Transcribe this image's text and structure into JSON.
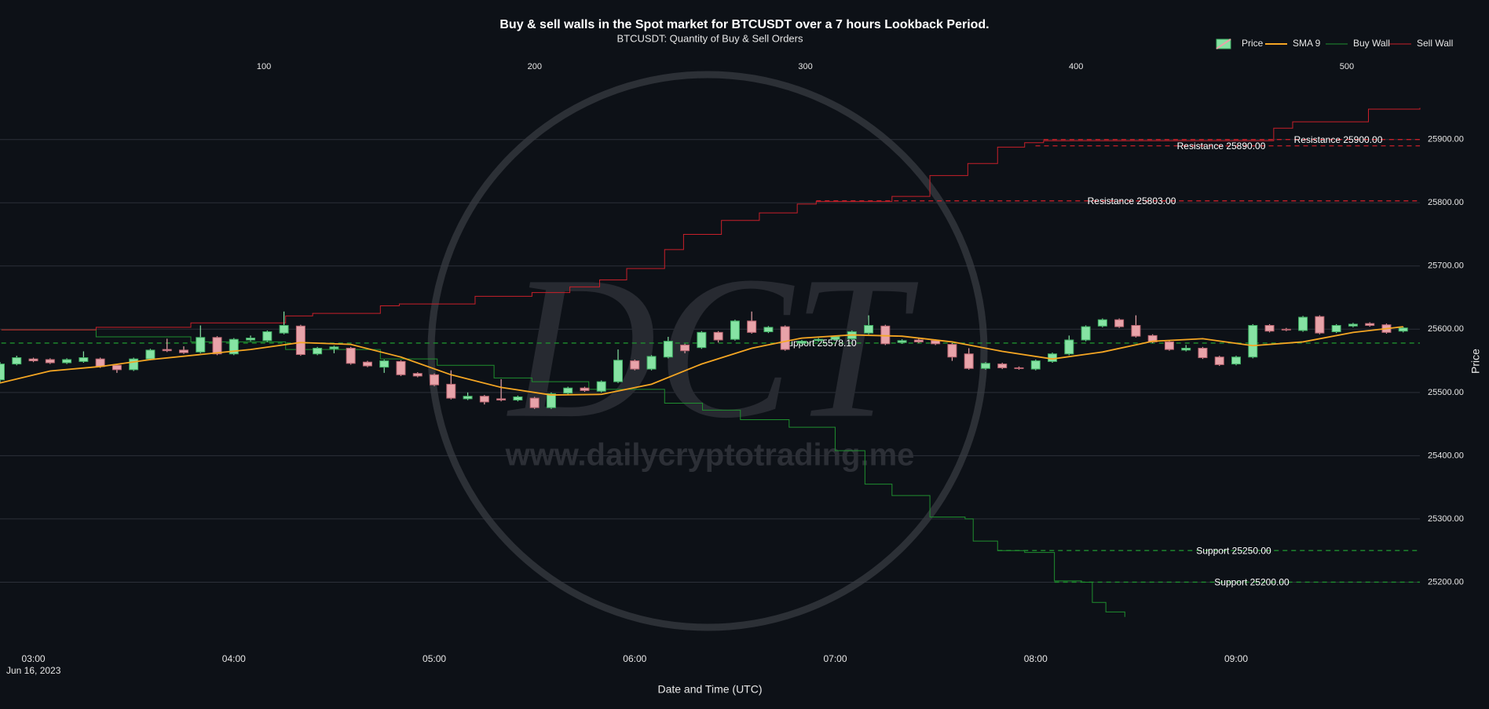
{
  "chart_data": {
    "type": "candlestick",
    "title": "Buy & sell walls in the Spot market for BTCUSDT over a 7 hours Lookback Period.",
    "subtitle": "BTCUSDT: Quantity of Buy & Sell Orders",
    "x_label": "Date and Time (UTC)",
    "x_date_label": "Jun 16, 2023",
    "y_label": "Price",
    "watermark": {
      "logo": "DCT",
      "url": "www.dailycryptotrading.me"
    },
    "xlim": [
      "2023-06-16 02:50",
      "2023-06-16 09:55"
    ],
    "xticks": [
      {
        "value": "2023-06-16 03:00",
        "label": "03:00"
      },
      {
        "value": "2023-06-16 04:00",
        "label": "04:00"
      },
      {
        "value": "2023-06-16 05:00",
        "label": "05:00"
      },
      {
        "value": "2023-06-16 06:00",
        "label": "06:00"
      },
      {
        "value": "2023-06-16 07:00",
        "label": "07:00"
      },
      {
        "value": "2023-06-16 08:00",
        "label": "08:00"
      },
      {
        "value": "2023-06-16 09:00",
        "label": "09:00"
      }
    ],
    "x2lim": [
      2.5,
      527
    ],
    "x2ticks": [
      100,
      200,
      300,
      400,
      500
    ],
    "ylim": [
      25100,
      26030
    ],
    "yticks": [
      {
        "value": 25200,
        "label": "25200.00"
      },
      {
        "value": 25300,
        "label": "25300.00"
      },
      {
        "value": 25400,
        "label": "25400.00"
      },
      {
        "value": 25500,
        "label": "25500.00"
      },
      {
        "value": 25600,
        "label": "25600.00"
      },
      {
        "value": 25700,
        "label": "25700.00"
      },
      {
        "value": 25800,
        "label": "25800.00"
      },
      {
        "value": 25900,
        "label": "25900.00"
      }
    ],
    "grid": true,
    "legend": "top-right",
    "series": [
      {
        "name": "Price",
        "type": "candlestick",
        "increasing_color": "#86e3a3",
        "decreasing_color": "#e8a3a9",
        "x": [
          "2023-06-16 02:50",
          "2023-06-16 02:55",
          "2023-06-16 03:00",
          "2023-06-16 03:05",
          "2023-06-16 03:10",
          "2023-06-16 03:15",
          "2023-06-16 03:20",
          "2023-06-16 03:25",
          "2023-06-16 03:30",
          "2023-06-16 03:35",
          "2023-06-16 03:40",
          "2023-06-16 03:45",
          "2023-06-16 03:50",
          "2023-06-16 03:55",
          "2023-06-16 04:00",
          "2023-06-16 04:05",
          "2023-06-16 04:10",
          "2023-06-16 04:15",
          "2023-06-16 04:20",
          "2023-06-16 04:25",
          "2023-06-16 04:30",
          "2023-06-16 04:35",
          "2023-06-16 04:40",
          "2023-06-16 04:45",
          "2023-06-16 04:50",
          "2023-06-16 04:55",
          "2023-06-16 05:00",
          "2023-06-16 05:05",
          "2023-06-16 05:10",
          "2023-06-16 05:15",
          "2023-06-16 05:20",
          "2023-06-16 05:25",
          "2023-06-16 05:30",
          "2023-06-16 05:35",
          "2023-06-16 05:40",
          "2023-06-16 05:45",
          "2023-06-16 05:50",
          "2023-06-16 05:55",
          "2023-06-16 06:00",
          "2023-06-16 06:05",
          "2023-06-16 06:10",
          "2023-06-16 06:15",
          "2023-06-16 06:20",
          "2023-06-16 06:25",
          "2023-06-16 06:30",
          "2023-06-16 06:35",
          "2023-06-16 06:40",
          "2023-06-16 06:45",
          "2023-06-16 06:50",
          "2023-06-16 06:55",
          "2023-06-16 07:00",
          "2023-06-16 07:05",
          "2023-06-16 07:10",
          "2023-06-16 07:15",
          "2023-06-16 07:20",
          "2023-06-16 07:25",
          "2023-06-16 07:30",
          "2023-06-16 07:35",
          "2023-06-16 07:40",
          "2023-06-16 07:45",
          "2023-06-16 07:50",
          "2023-06-16 07:55",
          "2023-06-16 08:00",
          "2023-06-16 08:05",
          "2023-06-16 08:10",
          "2023-06-16 08:15",
          "2023-06-16 08:20",
          "2023-06-16 08:25",
          "2023-06-16 08:30",
          "2023-06-16 08:35",
          "2023-06-16 08:40",
          "2023-06-16 08:45",
          "2023-06-16 08:50",
          "2023-06-16 08:55",
          "2023-06-16 09:00",
          "2023-06-16 09:05",
          "2023-06-16 09:10",
          "2023-06-16 09:15",
          "2023-06-16 09:20",
          "2023-06-16 09:25",
          "2023-06-16 09:30",
          "2023-06-16 09:35",
          "2023-06-16 09:40",
          "2023-06-16 09:45",
          "2023-06-16 09:50"
        ],
        "open": [
          25520,
          25545,
          25553,
          25552,
          25547,
          25549,
          25553,
          25543,
          25536,
          25553,
          25568,
          25567,
          25564,
          25587,
          25561,
          25583,
          25582,
          25594,
          25605,
          25561,
          25569,
          25570,
          25548,
          25540,
          25549,
          25530,
          25528,
          25513,
          25490,
          25494,
          25490,
          25488,
          25491,
          25476,
          25499,
          25507,
          25502,
          25517,
          25550,
          25537,
          25556,
          25575,
          25571,
          25595,
          25584,
          25613,
          25596,
          25604,
          25578,
          25582,
          25584,
          25585,
          25594,
          25605,
          25579,
          25583,
          25582,
          25576,
          25561,
          25538,
          25545,
          25539,
          25537,
          25549,
          25561,
          25583,
          25605,
          25615,
          25606,
          25590,
          25580,
          25567,
          25570,
          25556,
          25545,
          25556,
          25606,
          25600,
          25598,
          25620,
          25596,
          25605,
          25609,
          25607,
          25597
        ],
        "high": [
          25548,
          25558,
          25555,
          25554,
          25554,
          25565,
          25555,
          25545,
          25555,
          25569,
          25585,
          25573,
          25606,
          25589,
          25586,
          25590,
          25598,
          25628,
          25607,
          25572,
          25574,
          25572,
          25550,
          25552,
          25551,
          25532,
          25530,
          25535,
          25500,
          25496,
          25521,
          25495,
          25493,
          25500,
          25509,
          25509,
          25519,
          25568,
          25552,
          25559,
          25588,
          25577,
          25597,
          25597,
          25615,
          25628,
          25605,
          25606,
          25583,
          25586,
          25590,
          25598,
          25622,
          25607,
          25584,
          25585,
          25584,
          25578,
          25570,
          25548,
          25547,
          25541,
          25552,
          25563,
          25590,
          25606,
          25617,
          25617,
          25622,
          25592,
          25582,
          25575,
          25572,
          25558,
          25558,
          25608,
          25608,
          25602,
          25621,
          25622,
          25608,
          25610,
          25611,
          25609,
          25604
        ],
        "low": [
          25515,
          25543,
          25548,
          25545,
          25545,
          25547,
          25539,
          25531,
          25534,
          25551,
          25564,
          25561,
          25562,
          25559,
          25559,
          25581,
          25580,
          25592,
          25558,
          25559,
          25562,
          25544,
          25540,
          25531,
          25526,
          25524,
          25510,
          25489,
          25488,
          25481,
          25486,
          25486,
          25474,
          25474,
          25497,
          25501,
          25500,
          25515,
          25535,
          25535,
          25554,
          25562,
          25569,
          25579,
          25582,
          25593,
          25594,
          25566,
          25576,
          25580,
          25582,
          25583,
          25592,
          25575,
          25577,
          25578,
          25575,
          25550,
          25536,
          25536,
          25537,
          25536,
          25535,
          25547,
          25559,
          25581,
          25603,
          25602,
          25587,
          25578,
          25566,
          25565,
          25553,
          25542,
          25543,
          25554,
          25595,
          25597,
          25596,
          25592,
          25594,
          25603,
          25604,
          25593,
          25595
        ],
        "close": [
          25545,
          25555,
          25550,
          25547,
          25552,
          25555,
          25541,
          25536,
          25553,
          25567,
          25566,
          25563,
          25587,
          25561,
          25584,
          25586,
          25596,
          25606,
          25560,
          25570,
          25572,
          25546,
          25542,
          25550,
          25528,
          25526,
          25512,
          25491,
          25494,
          25485,
          25488,
          25493,
          25476,
          25498,
          25507,
          25503,
          25517,
          25551,
          25537,
          25557,
          25581,
          25566,
          25595,
          25583,
          25613,
          25595,
          25603,
          25568,
          25581,
          25584,
          25588,
          25596,
          25606,
          25577,
          25582,
          25580,
          25577,
          25556,
          25538,
          25546,
          25539,
          25538,
          25550,
          25561,
          25583,
          25604,
          25615,
          25604,
          25589,
          25580,
          25568,
          25570,
          25555,
          25544,
          25556,
          25606,
          25597,
          25599,
          25619,
          25594,
          25606,
          25608,
          25606,
          25595,
          25602
        ]
      },
      {
        "name": "SMA 9",
        "type": "line",
        "color": "#f5a623",
        "x": [
          "2023-06-16 02:50",
          "2023-06-16 03:05",
          "2023-06-16 03:20",
          "2023-06-16 03:35",
          "2023-06-16 03:50",
          "2023-06-16 04:05",
          "2023-06-16 04:20",
          "2023-06-16 04:35",
          "2023-06-16 04:50",
          "2023-06-16 05:05",
          "2023-06-16 05:20",
          "2023-06-16 05:35",
          "2023-06-16 05:50",
          "2023-06-16 06:05",
          "2023-06-16 06:20",
          "2023-06-16 06:35",
          "2023-06-16 06:50",
          "2023-06-16 07:05",
          "2023-06-16 07:20",
          "2023-06-16 07:35",
          "2023-06-16 07:50",
          "2023-06-16 08:05",
          "2023-06-16 08:20",
          "2023-06-16 08:35",
          "2023-06-16 08:50",
          "2023-06-16 09:05",
          "2023-06-16 09:20",
          "2023-06-16 09:35",
          "2023-06-16 09:50"
        ],
        "values": [
          25515,
          25534,
          25541,
          25552,
          25560,
          25568,
          25579,
          25576,
          25556,
          25528,
          25508,
          25496,
          25497,
          25513,
          25545,
          25570,
          25586,
          25591,
          25589,
          25580,
          25565,
          25553,
          25564,
          25581,
          25585,
          25574,
          25580,
          25595,
          25604
        ]
      },
      {
        "name": "Buy Wall",
        "type": "line",
        "color": "#1f8f2f",
        "axis": "x2",
        "x": [
          3,
          38,
          73,
          108,
          143,
          164,
          185,
          199,
          220,
          248,
          262,
          276,
          294,
          311,
          322,
          332,
          346,
          359,
          362,
          371,
          381,
          392,
          402,
          406,
          411,
          418
        ],
        "values": [
          25599,
          25588,
          25580,
          25568,
          25553,
          25543,
          25523,
          25517,
          25505,
          25483,
          25472,
          25457,
          25445,
          25408,
          25355,
          25337,
          25303,
          25300,
          25265,
          25250,
          25247,
          25202,
          25200,
          25168,
          25153,
          25145
        ]
      },
      {
        "name": "Sell Wall",
        "type": "line",
        "color": "#c8202a",
        "axis": "x2",
        "x": [
          3,
          38,
          73,
          108,
          118,
          143,
          150,
          178,
          199,
          213,
          224,
          234,
          248,
          255,
          269,
          283,
          297,
          304,
          318,
          332,
          346,
          360,
          371,
          381,
          388,
          469,
          473,
          480,
          501,
          508,
          527
        ],
        "values": [
          25599,
          25603,
          25610,
          25621,
          25625,
          25637,
          25640,
          25652,
          25658,
          25667,
          25678,
          25696,
          25726,
          25750,
          25772,
          25784,
          25798,
          25802,
          25802,
          25810,
          25843,
          25862,
          25888,
          25895,
          25898,
          25898,
          25918,
          25928,
          25928,
          25948,
          25950
        ]
      }
    ],
    "levels": [
      {
        "label": "Resistance 25900.00",
        "value": 25900,
        "start": 388,
        "color": "#c8202a"
      },
      {
        "label": "Resistance 25890.00",
        "value": 25890,
        "start": 385,
        "color": "#c8202a"
      },
      {
        "label": "Resistance 25803.00",
        "value": 25803,
        "start": 304,
        "color": "#c8202a"
      },
      {
        "label": "Support 25578.10",
        "value": 25578.1,
        "start": 3,
        "color": "#1f8f2f"
      },
      {
        "label": "Support 25250.00",
        "value": 25250,
        "start": 371,
        "color": "#1f8f2f"
      },
      {
        "label": "Support 25200.00",
        "value": 25200,
        "start": 392,
        "color": "#1f8f2f"
      }
    ]
  }
}
